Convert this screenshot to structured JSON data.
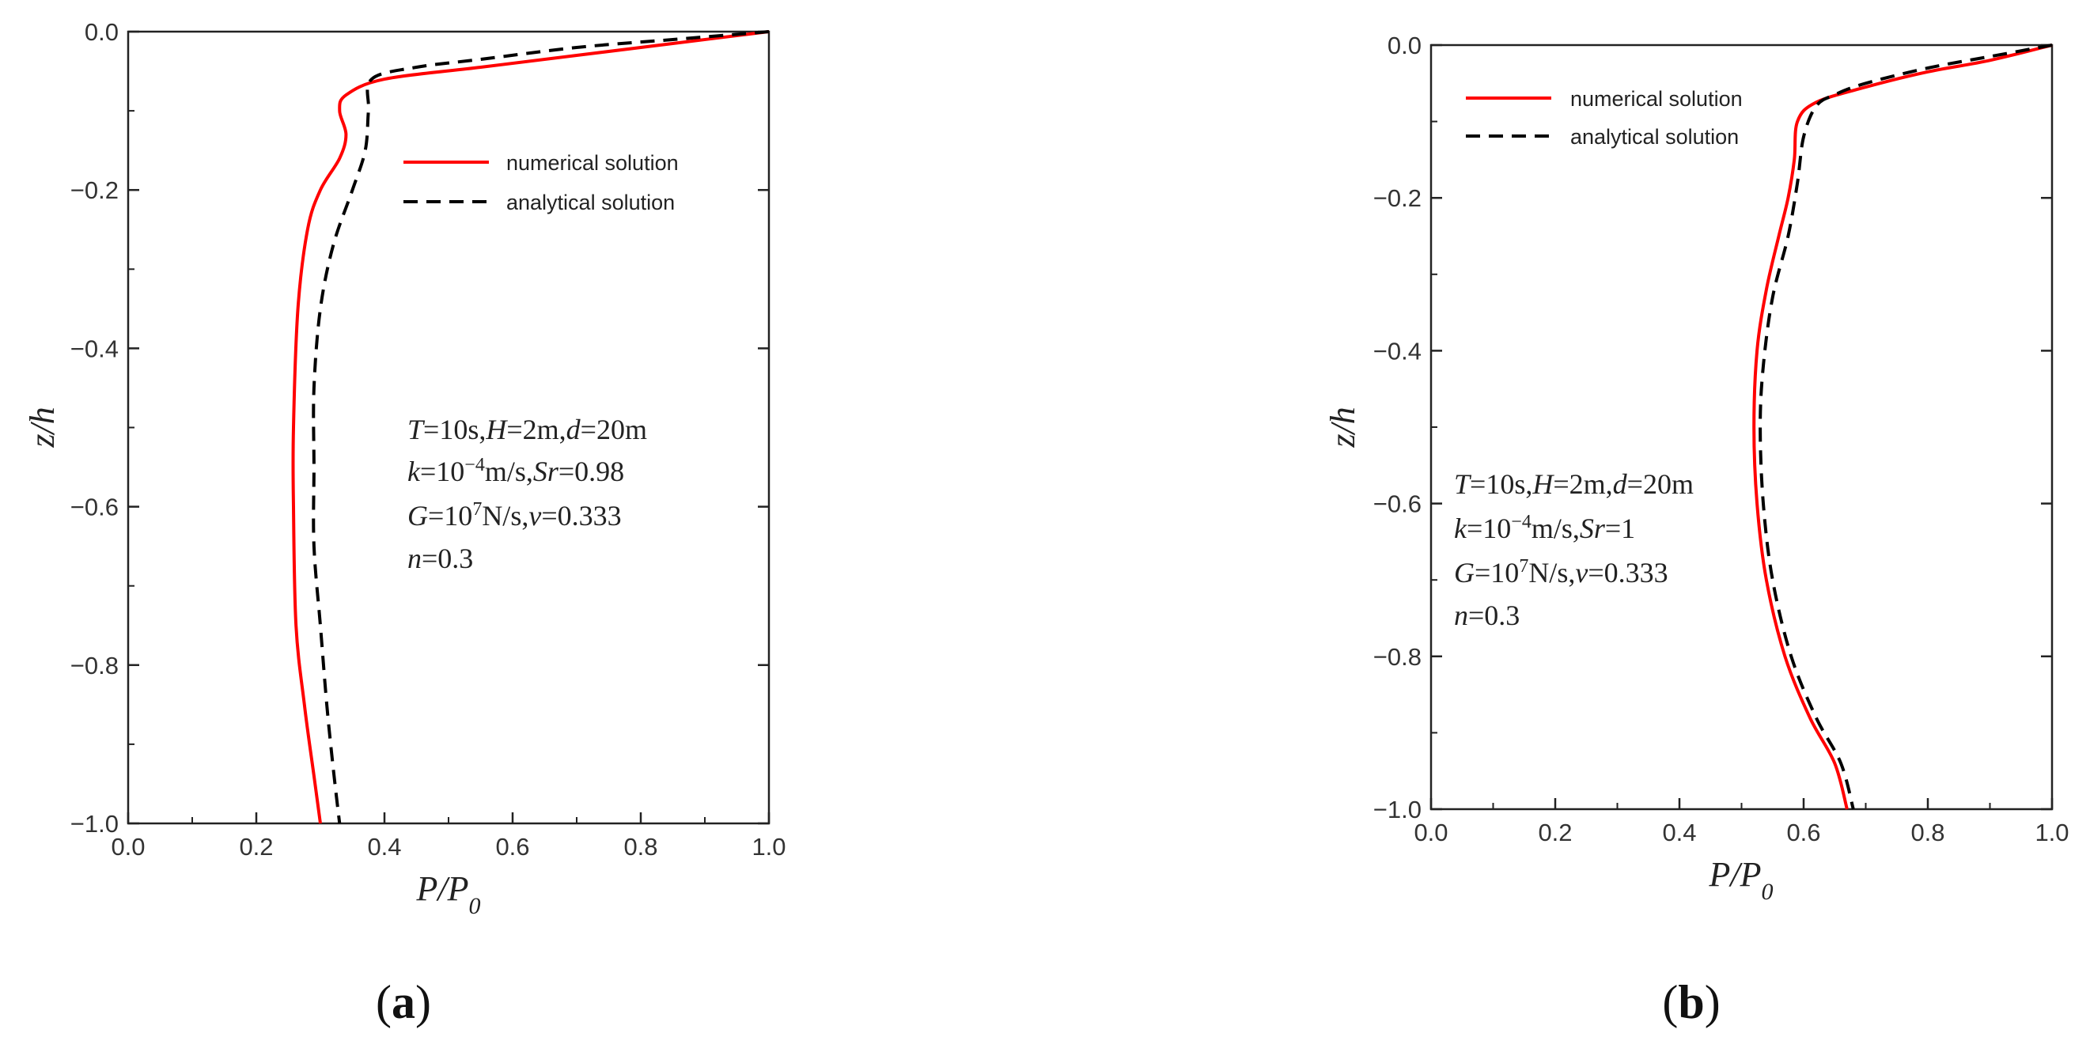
{
  "chart_data": [
    {
      "type": "line",
      "panel_label": "(a)",
      "xlabel": "P/P0",
      "ylabel": "z/h",
      "xlim": [
        0.0,
        1.0
      ],
      "ylim": [
        -1.0,
        0.0
      ],
      "x_ticks": [
        0.0,
        0.2,
        0.4,
        0.6,
        0.8,
        1.0
      ],
      "y_ticks": [
        0.0,
        -0.2,
        -0.4,
        -0.6,
        -0.8,
        -1.0
      ],
      "x_tick_labels": [
        "0.0",
        "0.2",
        "0.4",
        "0.6",
        "0.8",
        "1.0"
      ],
      "y_tick_labels": [
        "0.0",
        "−0.2",
        "−0.4",
        "−0.6",
        "−0.8",
        "−1.0"
      ],
      "legend_position": "top-right",
      "annotation": [
        "T=10s,H=2m,d=20m",
        "k=10−4m/s,Sr=0.98",
        "G=107N/s,v=0.333",
        "n=0.3"
      ],
      "series": [
        {
          "name": "numerical solution",
          "color": "#ff0000",
          "style": "solid",
          "points": [
            [
              1.0,
              0.0
            ],
            [
              0.85,
              -0.015
            ],
            [
              0.7,
              -0.03
            ],
            [
              0.55,
              -0.045
            ],
            [
              0.4,
              -0.06
            ],
            [
              0.34,
              -0.08
            ],
            [
              0.33,
              -0.1
            ],
            [
              0.34,
              -0.13
            ],
            [
              0.33,
              -0.16
            ],
            [
              0.3,
              -0.2
            ],
            [
              0.28,
              -0.25
            ],
            [
              0.265,
              -0.35
            ],
            [
              0.258,
              -0.5
            ],
            [
              0.258,
              -0.6
            ],
            [
              0.262,
              -0.75
            ],
            [
              0.275,
              -0.85
            ],
            [
              0.29,
              -0.94
            ],
            [
              0.3,
              -1.0
            ]
          ]
        },
        {
          "name": "analytical solution",
          "color": "#000000",
          "style": "dashed",
          "points": [
            [
              1.0,
              0.0
            ],
            [
              0.85,
              -0.01
            ],
            [
              0.7,
              -0.02
            ],
            [
              0.55,
              -0.035
            ],
            [
              0.45,
              -0.045
            ],
            [
              0.38,
              -0.06
            ],
            [
              0.375,
              -0.1
            ],
            [
              0.37,
              -0.15
            ],
            [
              0.35,
              -0.2
            ],
            [
              0.32,
              -0.27
            ],
            [
              0.3,
              -0.35
            ],
            [
              0.29,
              -0.45
            ],
            [
              0.29,
              -0.55
            ],
            [
              0.29,
              -0.65
            ],
            [
              0.3,
              -0.75
            ],
            [
              0.31,
              -0.85
            ],
            [
              0.32,
              -0.93
            ],
            [
              0.33,
              -1.0
            ]
          ]
        }
      ]
    },
    {
      "type": "line",
      "panel_label": "(b)",
      "xlabel": "P/P0",
      "ylabel": "z/h",
      "xlim": [
        0.0,
        1.0
      ],
      "ylim": [
        -1.0,
        0.0
      ],
      "x_ticks": [
        0.0,
        0.2,
        0.4,
        0.6,
        0.8,
        1.0
      ],
      "y_ticks": [
        0.0,
        -0.2,
        -0.4,
        -0.6,
        -0.8,
        -1.0
      ],
      "x_tick_labels": [
        "0.0",
        "0.2",
        "0.4",
        "0.6",
        "0.8",
        "1.0"
      ],
      "y_tick_labels": [
        "0.0",
        "−0.2",
        "−0.4",
        "−0.6",
        "−0.8",
        "−1.0"
      ],
      "legend_position": "top-left",
      "annotation": [
        "T=10s,H=2m,d=20m",
        "k=10−4m/s,Sr=1",
        "G=107N/s,v=0.333",
        "n=0.3"
      ],
      "series": [
        {
          "name": "numerical solution",
          "color": "#ff0000",
          "style": "solid",
          "points": [
            [
              1.0,
              0.0
            ],
            [
              0.9,
              -0.02
            ],
            [
              0.8,
              -0.035
            ],
            [
              0.7,
              -0.055
            ],
            [
              0.62,
              -0.075
            ],
            [
              0.59,
              -0.1
            ],
            [
              0.585,
              -0.15
            ],
            [
              0.575,
              -0.2
            ],
            [
              0.56,
              -0.25
            ],
            [
              0.54,
              -0.32
            ],
            [
              0.525,
              -0.4
            ],
            [
              0.52,
              -0.5
            ],
            [
              0.525,
              -0.6
            ],
            [
              0.54,
              -0.7
            ],
            [
              0.57,
              -0.8
            ],
            [
              0.61,
              -0.88
            ],
            [
              0.65,
              -0.94
            ],
            [
              0.67,
              -1.0
            ]
          ]
        },
        {
          "name": "analytical solution",
          "color": "#000000",
          "style": "dashed",
          "points": [
            [
              1.0,
              0.0
            ],
            [
              0.9,
              -0.015
            ],
            [
              0.8,
              -0.03
            ],
            [
              0.7,
              -0.05
            ],
            [
              0.65,
              -0.065
            ],
            [
              0.62,
              -0.08
            ],
            [
              0.6,
              -0.12
            ],
            [
              0.59,
              -0.18
            ],
            [
              0.575,
              -0.25
            ],
            [
              0.55,
              -0.33
            ],
            [
              0.535,
              -0.42
            ],
            [
              0.53,
              -0.5
            ],
            [
              0.535,
              -0.6
            ],
            [
              0.55,
              -0.7
            ],
            [
              0.58,
              -0.8
            ],
            [
              0.62,
              -0.88
            ],
            [
              0.66,
              -0.94
            ],
            [
              0.68,
              -1.0
            ]
          ]
        }
      ]
    }
  ]
}
